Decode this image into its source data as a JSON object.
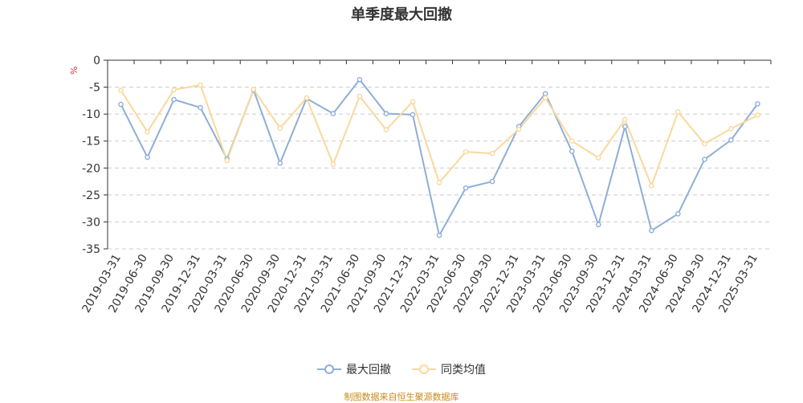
{
  "chart_data": {
    "type": "line",
    "title": "单季度最大回撤",
    "ylabel": "%",
    "ylim": [
      -35,
      0
    ],
    "yticks": [
      0,
      -5,
      -10,
      -15,
      -20,
      -25,
      -30,
      -35
    ],
    "grid": true,
    "legend_position": "bottom",
    "categories": [
      "2019-03-31",
      "2019-06-30",
      "2019-09-30",
      "2019-12-31",
      "2020-03-31",
      "2020-06-30",
      "2020-09-30",
      "2020-12-31",
      "2021-03-31",
      "2021-06-30",
      "2021-09-30",
      "2021-12-31",
      "2022-03-31",
      "2022-06-30",
      "2022-09-30",
      "2022-12-31",
      "2023-03-31",
      "2023-06-30",
      "2023-09-30",
      "2023-12-31",
      "2024-03-31",
      "2024-06-30",
      "2024-09-30",
      "2024-12-31",
      "2025-03-31"
    ],
    "series": [
      {
        "name": "最大回撤",
        "color": "#8eaed8",
        "values": [
          -8.2,
          -18.0,
          -7.3,
          -8.8,
          -18.3,
          -5.5,
          -19.1,
          -7.1,
          -9.9,
          -3.6,
          -9.9,
          -10.1,
          -32.5,
          -23.7,
          -22.5,
          -12.3,
          -6.2,
          -16.9,
          -30.5,
          -12.3,
          -31.6,
          -28.5,
          -18.4,
          -14.8,
          -8.1
        ]
      },
      {
        "name": "同类均值",
        "color": "#fad89c",
        "values": [
          -5.6,
          -13.3,
          -5.5,
          -4.6,
          -18.6,
          -5.4,
          -12.6,
          -7.0,
          -19.3,
          -6.7,
          -12.9,
          -7.7,
          -22.7,
          -17.0,
          -17.3,
          -12.8,
          -7.0,
          -15.0,
          -18.1,
          -11.0,
          -23.3,
          -9.6,
          -15.5,
          -12.7,
          -10.2
        ]
      }
    ]
  },
  "source_text": "制图数据来自恒生聚源数据库"
}
